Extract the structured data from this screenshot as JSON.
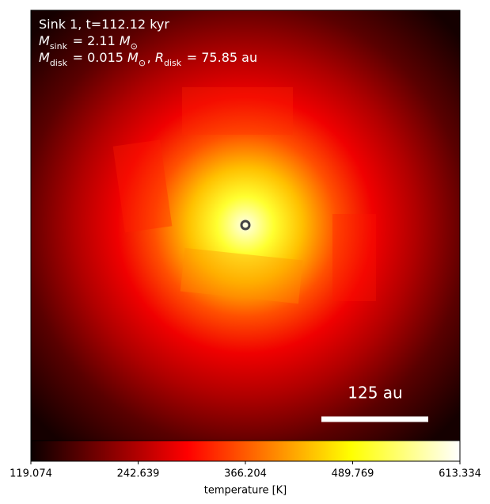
{
  "chart_data": {
    "type": "image",
    "annotations": [
      [
        {
          "text": "Sink 1, t=112.12 kyr"
        }
      ],
      [
        {
          "text": "M",
          "sub": "sink"
        },
        {
          "text": " = 2.11 "
        },
        {
          "text": "M",
          "sub": "⊙"
        }
      ],
      [
        {
          "text": "M",
          "sub": "disk"
        },
        {
          "text": " = 0.015 "
        },
        {
          "text": "M",
          "sub": "⊙"
        },
        {
          "text": ", "
        },
        {
          "text": "R",
          "sub": "disk"
        },
        {
          "text": " = 75.85 au"
        }
      ]
    ],
    "scale_bar_label": "125 au",
    "colorbar": {
      "label": "temperature [K]",
      "cmap": "hot",
      "lim": [
        119.074,
        613.334
      ],
      "ticks": [
        119.074,
        242.639,
        366.204,
        489.769,
        613.334
      ]
    }
  }
}
